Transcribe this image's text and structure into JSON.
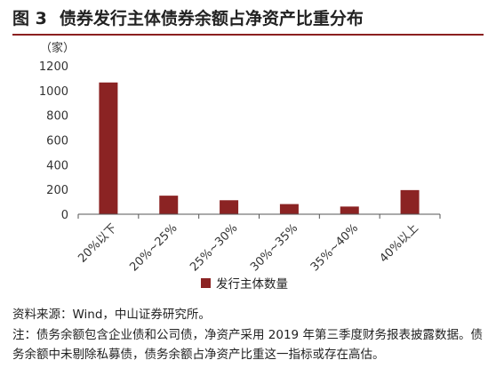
{
  "figure": {
    "number": "图 3",
    "title": "债券发行主体债券余额占净资产比重分布",
    "source": "资料来源：Wind，中山证券研究所。",
    "note": "注：债务余额包含企业债和公司债，净资产采用 2019 年第三季度财务报表披露数据。债务余额中未剔除私募债，债务余额占净资产比重这一指标或存在高估。"
  },
  "chart_data": {
    "type": "bar",
    "title": "债券发行主体债券余额占净资产比重分布",
    "ylabel": "（家）",
    "xlabel": "",
    "categories": [
      "20%以下",
      "20%~25%",
      "25%~30%",
      "30%~35%",
      "35%~40%",
      "40%以上"
    ],
    "series": [
      {
        "name": "发行主体数量",
        "values": [
          1065,
          150,
          113,
          82,
          62,
          195
        ]
      }
    ],
    "ylim": [
      0,
      1200
    ],
    "yticks": [
      0,
      200,
      400,
      600,
      800,
      1000,
      1200
    ],
    "grid": false,
    "legend": "bottom",
    "colors": {
      "bar": "#8b2323",
      "axis": "#555555",
      "title_rule": "#8b2020"
    }
  }
}
